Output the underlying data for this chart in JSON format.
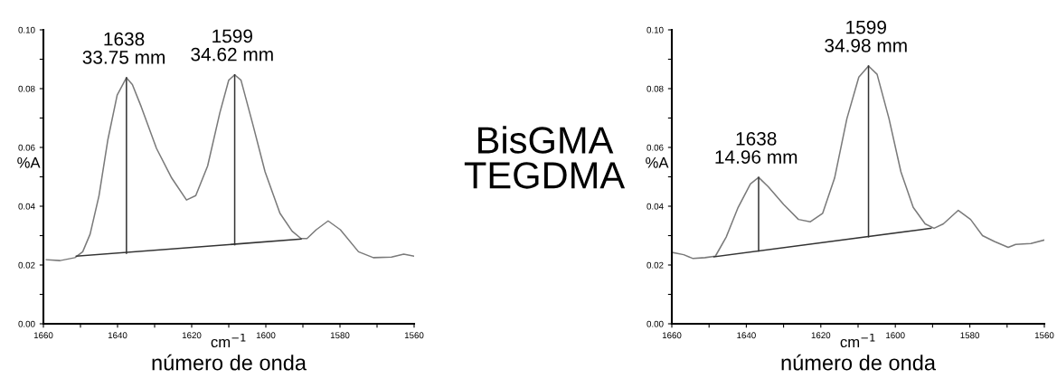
{
  "chart_data": [
    {
      "type": "line",
      "xlabel": "cm$^{−1}$",
      "ylabel": "%A",
      "xlim": [
        1660,
        1560
      ],
      "ylim": [
        0,
        0.1
      ],
      "xticks": [
        1660,
        {
          "value": 1650,
          "label": null
        },
        1640,
        {
          "value": 1630,
          "label": null
        },
        1620,
        {
          "value": 1610,
          "label": null
        },
        1600,
        {
          "value": 1590,
          "label": null
        },
        1580,
        {
          "value": 1570,
          "label": null
        },
        1560
      ],
      "yticks": [
        {
          "value": 0,
          "label": "0.00"
        },
        {
          "value": 0.01,
          "label": null
        },
        {
          "value": 0.02,
          "label": "0.02"
        },
        {
          "value": 0.03,
          "label": null
        },
        {
          "value": 0.04,
          "label": "0.04"
        },
        {
          "value": 0.05,
          "label": null
        },
        {
          "value": 0.06,
          "label": "0.06"
        },
        {
          "value": 0.07,
          "label": null
        },
        {
          "value": 0.08,
          "label": "0.08"
        },
        {
          "value": 0.09,
          "label": null
        },
        {
          "value": 0.1,
          "label": "0.10"
        }
      ],
      "grid": false,
      "legend": false,
      "annotations": [
        {
          "text": "1638\n33.75 mm",
          "x": 1637.6,
          "y": 0.0837
        },
        {
          "text": "1599\n34.62 mm",
          "x": 1608.4,
          "y": 0.0847
        },
        "número de onda",
        "BisGMA\nTEGDMA"
      ],
      "series": [
        {
          "color": "#7a7a7a",
          "x": [
            1659.2,
            1655.5,
            1651.5,
            1649.4,
            1647.4,
            1645,
            1642.6,
            1640.1,
            1637.6,
            1636,
            1633.6,
            1629.5,
            1625.4,
            1621.4,
            1618.9,
            1615.7,
            1612.4,
            1610,
            1608.4,
            1606.7,
            1603.5,
            1600.2,
            1596.2,
            1592.9,
            1590.5,
            1588.9,
            1586.4,
            1583.2,
            1579.9,
            1575,
            1571,
            1566.1,
            1562.8,
            1560
          ],
          "values": [
            0.0218,
            0.0215,
            0.0225,
            0.0245,
            0.0305,
            0.0436,
            0.0627,
            0.0778,
            0.0837,
            0.0814,
            0.0738,
            0.0597,
            0.0496,
            0.0421,
            0.0436,
            0.0537,
            0.0718,
            0.0829,
            0.0847,
            0.0829,
            0.0678,
            0.0517,
            0.0376,
            0.0315,
            0.029,
            0.029,
            0.032,
            0.035,
            0.032,
            0.0245,
            0.0225,
            0.0227,
            0.0237,
            0.023
          ]
        },
        {
          "color": "#333333",
          "x": [
            1651.1,
            1590.5
          ],
          "values": [
            0.023,
            0.0288
          ]
        },
        {
          "color": "#333333",
          "x": [
            1637.6,
            1637.6
          ],
          "values": [
            0.024,
            0.0837
          ]
        },
        {
          "color": "#333333",
          "x": [
            1608.4,
            1608.4
          ],
          "values": [
            0.0269,
            0.0847
          ]
        }
      ]
    },
    {
      "type": "line",
      "xlabel": "cm$^{−1}$",
      "ylabel": "%A",
      "xlim": [
        1660,
        1560
      ],
      "ylim": [
        0,
        0.1
      ],
      "xticks": [
        1660,
        {
          "value": 1650,
          "label": null
        },
        1640,
        {
          "value": 1630,
          "label": null
        },
        1620,
        {
          "value": 1610,
          "label": null
        },
        1600,
        {
          "value": 1590,
          "label": null
        },
        1580,
        {
          "value": 1570,
          "label": null
        },
        1560
      ],
      "yticks": [
        {
          "value": 0,
          "label": "0.00"
        },
        {
          "value": 0.01,
          "label": null
        },
        {
          "value": 0.02,
          "label": "0.02"
        },
        {
          "value": 0.03,
          "label": null
        },
        {
          "value": 0.04,
          "label": "0.04"
        },
        {
          "value": 0.05,
          "label": null
        },
        {
          "value": 0.06,
          "label": "0.06"
        },
        {
          "value": 0.07,
          "label": null
        },
        {
          "value": 0.08,
          "label": "0.08"
        },
        {
          "value": 0.09,
          "label": null
        },
        {
          "value": 0.1,
          "label": "0.10"
        }
      ],
      "grid": false,
      "legend": false,
      "annotations": [
        {
          "text": "1638\n14.96 mm",
          "x": 1636.7,
          "y": 0.0498
        },
        {
          "text": "1599\n34.98 mm",
          "x": 1607.2,
          "y": 0.0877
        },
        "número de onda"
      ],
      "series": [
        {
          "color": "#7a7a7a",
          "x": [
            1659.6,
            1656.8,
            1654.3,
            1651.1,
            1648.3,
            1645.4,
            1642.2,
            1638.9,
            1636.7,
            1634.1,
            1630,
            1626,
            1622.8,
            1619.5,
            1616.3,
            1613,
            1609.8,
            1607.2,
            1604.9,
            1601.7,
            1598.5,
            1595.2,
            1592,
            1589.6,
            1587.1,
            1583.1,
            1579.8,
            1576.6,
            1573.4,
            1569.7,
            1567.7,
            1563.6,
            1560
          ],
          "values": [
            0.0242,
            0.0235,
            0.0222,
            0.0225,
            0.023,
            0.0295,
            0.0396,
            0.0476,
            0.0498,
            0.0466,
            0.0406,
            0.0355,
            0.0347,
            0.0376,
            0.0496,
            0.0698,
            0.0839,
            0.0877,
            0.0849,
            0.0698,
            0.0517,
            0.0396,
            0.034,
            0.0325,
            0.034,
            0.0386,
            0.0355,
            0.03,
            0.028,
            0.026,
            0.027,
            0.0273,
            0.0285
          ]
        },
        {
          "color": "#333333",
          "x": [
            1648.7,
            1590.4
          ],
          "values": [
            0.0228,
            0.0325
          ]
        },
        {
          "color": "#333333",
          "x": [
            1636.7,
            1636.7
          ],
          "values": [
            0.0248,
            0.0498
          ]
        },
        {
          "color": "#333333",
          "x": [
            1607.2,
            1607.2
          ],
          "values": [
            0.0296,
            0.0877
          ]
        }
      ]
    }
  ]
}
